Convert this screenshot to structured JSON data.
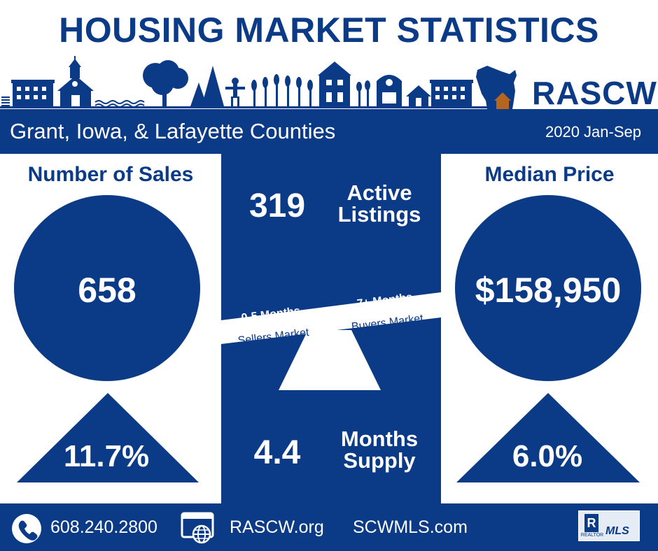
{
  "header": {
    "title": "HOUSING MARKET STATISTICS",
    "brand": "RASCW"
  },
  "band": {
    "region": "Grant, Iowa, & Lafayette Counties",
    "period": "2020 Jan-Sep"
  },
  "sales": {
    "heading": "Number of Sales",
    "value": "658",
    "change": "11.7%"
  },
  "price": {
    "heading": "Median Price",
    "value": "$158,950",
    "change": "6.0%"
  },
  "center": {
    "listings_value": "319",
    "listings_label_1": "Active",
    "listings_label_2": "Listings",
    "seller_range": "0-5 Months",
    "seller_label": "Sellers Market",
    "buyer_range": "7+ Months",
    "buyer_label": "Buyers Market",
    "supply_value": "4.4",
    "supply_label_1": "Months",
    "supply_label_2": "Supply"
  },
  "footer": {
    "phone": "608.240.2800",
    "website1": "RASCW.org",
    "website2": "SCWMLS.com",
    "mls_badge": "MLS",
    "realtor_badge": "REALTOR"
  },
  "colors": {
    "navy": "#0b3a86",
    "white": "#ffffff",
    "house_orange": "#b5651d"
  }
}
